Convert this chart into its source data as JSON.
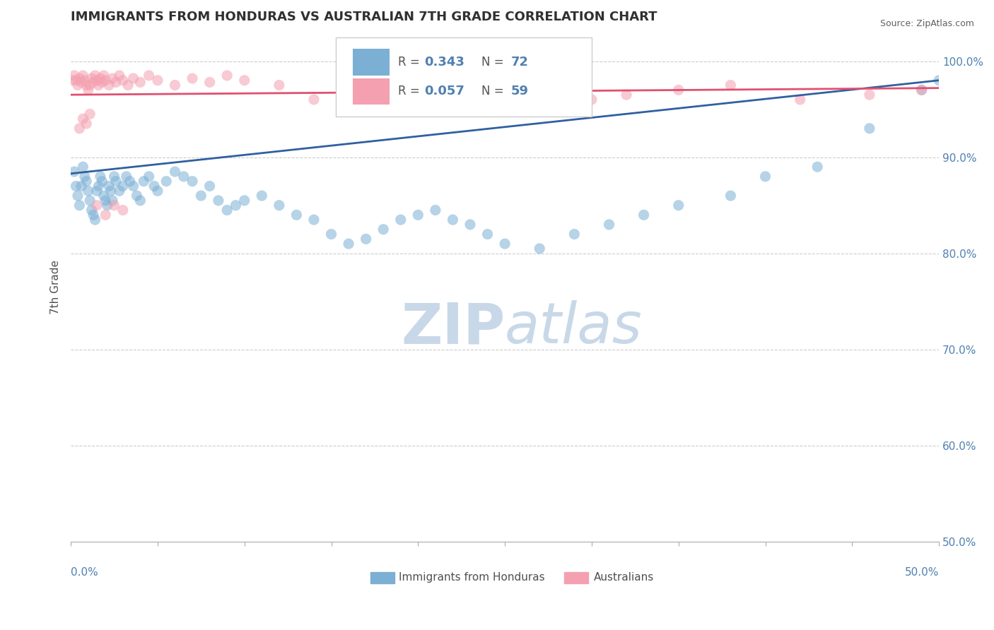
{
  "title": "IMMIGRANTS FROM HONDURAS VS AUSTRALIAN 7TH GRADE CORRELATION CHART",
  "source": "Source: ZipAtlas.com",
  "ylabel": "7th Grade",
  "y_tick_labels": [
    "100.0%",
    "90.0%",
    "80.0%",
    "70.0%",
    "60.0%",
    "50.0%"
  ],
  "y_tick_values": [
    1.0,
    0.9,
    0.8,
    0.7,
    0.6,
    0.5
  ],
  "x_lim": [
    0.0,
    0.5
  ],
  "y_lim": [
    0.5,
    1.03
  ],
  "legend_blue_label": "Immigrants from Honduras",
  "legend_pink_label": "Australians",
  "R_blue_val": "0.343",
  "N_blue_val": "72",
  "R_pink_val": "0.057",
  "N_pink_val": "59",
  "blue_color": "#7BAFD4",
  "pink_color": "#F4A0B0",
  "blue_line_color": "#3060A0",
  "pink_line_color": "#E05070",
  "watermark_zip": "ZIP",
  "watermark_atlas": "atlas",
  "watermark_color": "#C8D8E8",
  "title_color": "#303030",
  "axis_label_color": "#5080B0",
  "blue_scatter_x": [
    0.002,
    0.003,
    0.004,
    0.005,
    0.006,
    0.007,
    0.008,
    0.009,
    0.01,
    0.011,
    0.012,
    0.013,
    0.014,
    0.015,
    0.016,
    0.017,
    0.018,
    0.019,
    0.02,
    0.021,
    0.022,
    0.023,
    0.024,
    0.025,
    0.026,
    0.028,
    0.03,
    0.032,
    0.034,
    0.036,
    0.038,
    0.04,
    0.042,
    0.045,
    0.048,
    0.05,
    0.055,
    0.06,
    0.065,
    0.07,
    0.075,
    0.08,
    0.085,
    0.09,
    0.095,
    0.1,
    0.11,
    0.12,
    0.13,
    0.14,
    0.15,
    0.16,
    0.17,
    0.18,
    0.19,
    0.2,
    0.21,
    0.22,
    0.23,
    0.24,
    0.25,
    0.27,
    0.29,
    0.31,
    0.33,
    0.35,
    0.38,
    0.4,
    0.43,
    0.46,
    0.49,
    0.5
  ],
  "blue_scatter_y": [
    0.885,
    0.87,
    0.86,
    0.85,
    0.87,
    0.89,
    0.88,
    0.875,
    0.865,
    0.855,
    0.845,
    0.84,
    0.835,
    0.865,
    0.87,
    0.88,
    0.875,
    0.86,
    0.855,
    0.85,
    0.87,
    0.865,
    0.855,
    0.88,
    0.875,
    0.865,
    0.87,
    0.88,
    0.875,
    0.87,
    0.86,
    0.855,
    0.875,
    0.88,
    0.87,
    0.865,
    0.875,
    0.885,
    0.88,
    0.875,
    0.86,
    0.87,
    0.855,
    0.845,
    0.85,
    0.855,
    0.86,
    0.85,
    0.84,
    0.835,
    0.82,
    0.81,
    0.815,
    0.825,
    0.835,
    0.84,
    0.845,
    0.835,
    0.83,
    0.82,
    0.81,
    0.805,
    0.82,
    0.83,
    0.84,
    0.85,
    0.86,
    0.88,
    0.89,
    0.93,
    0.97,
    0.98
  ],
  "pink_scatter_x": [
    0.001,
    0.002,
    0.003,
    0.004,
    0.005,
    0.006,
    0.007,
    0.008,
    0.009,
    0.01,
    0.011,
    0.012,
    0.013,
    0.014,
    0.015,
    0.016,
    0.017,
    0.018,
    0.019,
    0.02,
    0.022,
    0.024,
    0.026,
    0.028,
    0.03,
    0.033,
    0.036,
    0.04,
    0.045,
    0.05,
    0.06,
    0.07,
    0.08,
    0.09,
    0.1,
    0.12,
    0.14,
    0.16,
    0.18,
    0.2,
    0.22,
    0.24,
    0.26,
    0.28,
    0.3,
    0.32,
    0.35,
    0.38,
    0.42,
    0.46,
    0.49,
    0.005,
    0.007,
    0.009,
    0.011,
    0.015,
    0.02,
    0.025,
    0.03
  ],
  "pink_scatter_y": [
    0.98,
    0.985,
    0.98,
    0.975,
    0.982,
    0.978,
    0.985,
    0.98,
    0.975,
    0.97,
    0.975,
    0.982,
    0.978,
    0.985,
    0.98,
    0.975,
    0.982,
    0.978,
    0.985,
    0.98,
    0.975,
    0.982,
    0.978,
    0.985,
    0.98,
    0.975,
    0.982,
    0.978,
    0.985,
    0.98,
    0.975,
    0.982,
    0.978,
    0.985,
    0.98,
    0.975,
    0.96,
    0.965,
    0.97,
    0.975,
    0.96,
    0.965,
    0.97,
    0.975,
    0.96,
    0.965,
    0.97,
    0.975,
    0.96,
    0.965,
    0.97,
    0.93,
    0.94,
    0.935,
    0.945,
    0.85,
    0.84,
    0.85,
    0.845
  ],
  "blue_line_x": [
    0.0,
    0.5
  ],
  "blue_line_y": [
    0.883,
    0.98
  ],
  "pink_line_x": [
    0.0,
    0.5
  ],
  "pink_line_y": [
    0.965,
    0.972
  ]
}
